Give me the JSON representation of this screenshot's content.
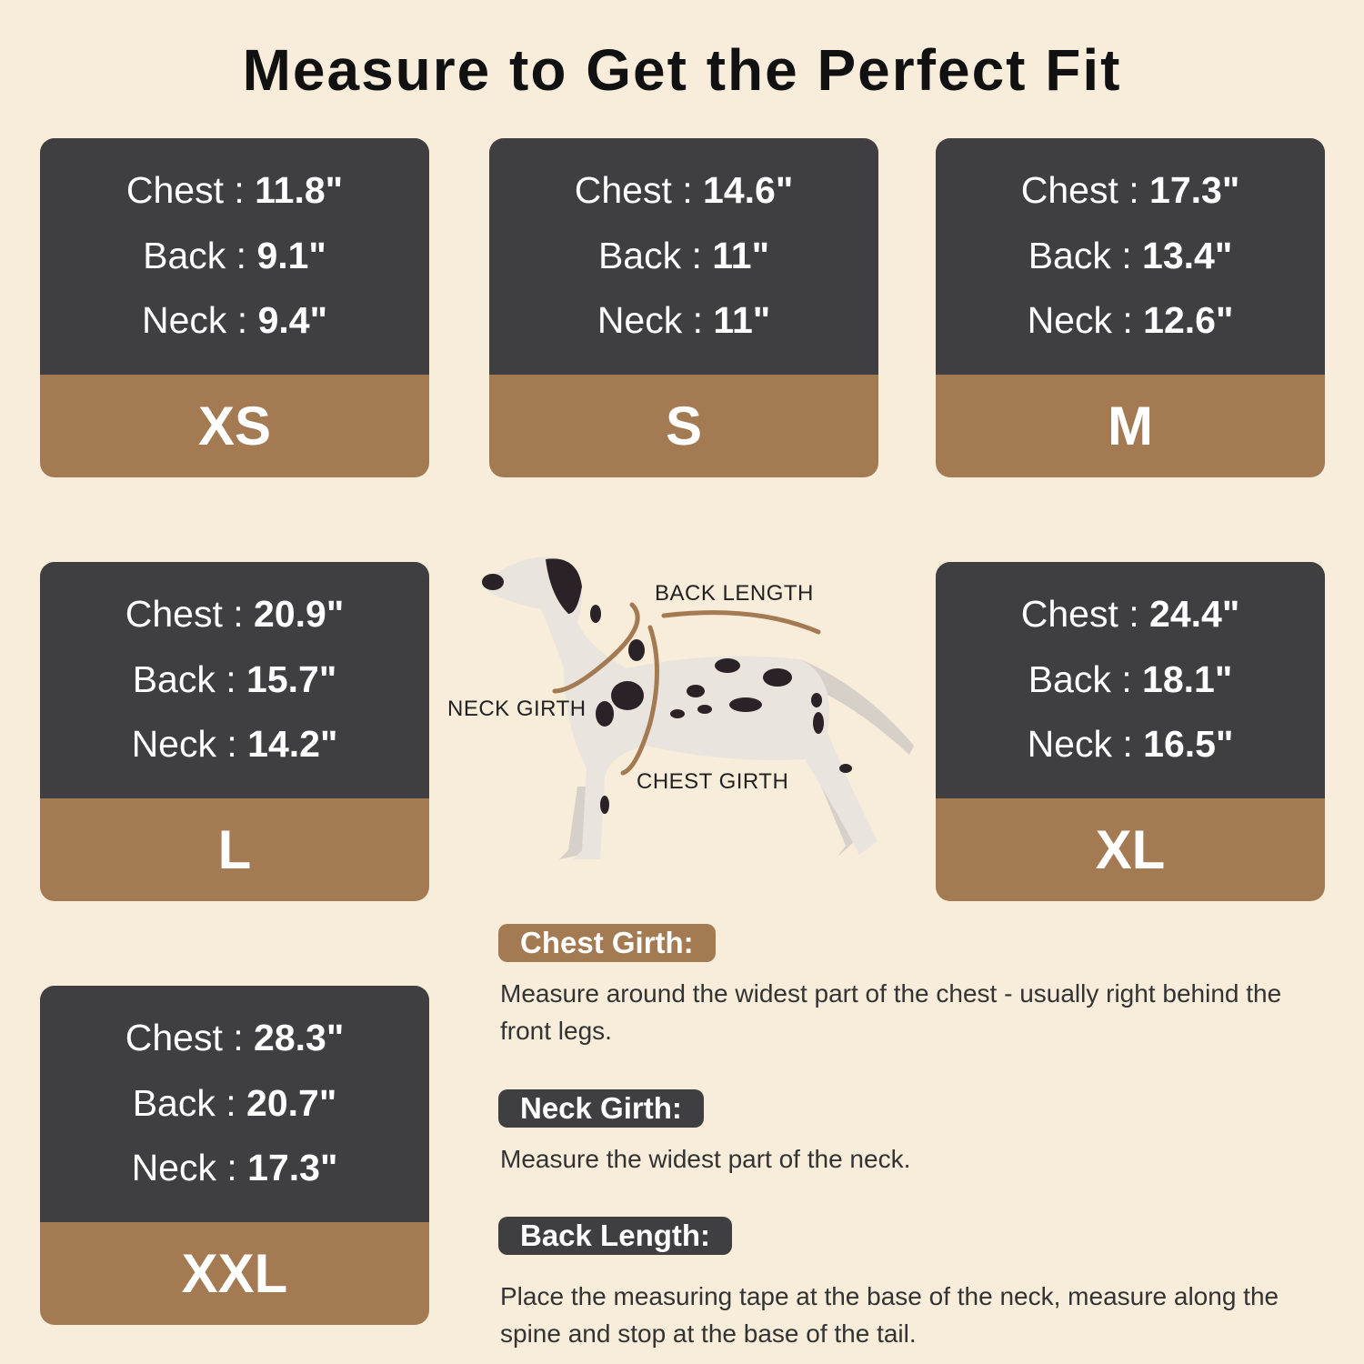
{
  "title": "Measure to Get the Perfect Fit",
  "sizes": [
    {
      "size": "XS",
      "chest": "11.8\"",
      "back": "9.1\"",
      "neck": "9.4\""
    },
    {
      "size": "S",
      "chest": "14.6\"",
      "back": "11\"",
      "neck": "11\""
    },
    {
      "size": "M",
      "chest": "17.3\"",
      "back": "13.4\"",
      "neck": "12.6\""
    },
    {
      "size": "L",
      "chest": "20.9\"",
      "back": "15.7\"",
      "neck": "14.2\""
    },
    {
      "size": "XL",
      "chest": "24.4\"",
      "back": "18.1\"",
      "neck": "16.5\""
    },
    {
      "size": "XXL",
      "chest": "28.3\"",
      "back": "20.7\"",
      "neck": "17.3\""
    }
  ],
  "labels": {
    "chest": "Chest : ",
    "back": "Back : ",
    "neck": "Neck : "
  },
  "diagram": {
    "back_length": "BACK LENGTH",
    "neck_girth": "NECK GIRTH",
    "chest_girth": "CHEST GIRTH"
  },
  "instructions": [
    {
      "heading": "Chest Girth:",
      "text": "Measure around the widest part of the chest - usually right behind the front legs."
    },
    {
      "heading": "Neck Girth:",
      "text": "Measure the widest part of the neck."
    },
    {
      "heading": "Back Length:",
      "text": "Place the measuring tape at the base of the neck, measure along the spine and stop at the base of the tail."
    }
  ],
  "colors": {
    "background": "#f8ecda",
    "card_dark": "#3f3f42",
    "accent_brown": "#a37a52"
  }
}
